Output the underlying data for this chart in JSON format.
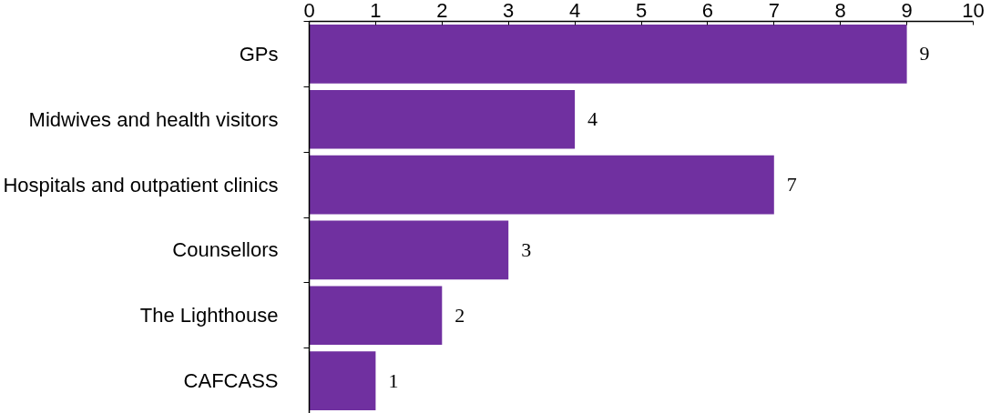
{
  "chart_data": {
    "type": "bar",
    "orientation": "horizontal",
    "categories": [
      "GPs",
      "Midwives and health visitors",
      "Hospitals and outpatient clinics",
      "Counsellors",
      "The Lighthouse",
      "CAFCASS"
    ],
    "values": [
      9,
      4,
      7,
      3,
      2,
      1
    ],
    "color": "#7030a0",
    "xlim": [
      0,
      10
    ],
    "xticks": [
      0,
      1,
      2,
      3,
      4,
      5,
      6,
      7,
      8,
      9,
      10
    ],
    "data_labels": true,
    "grid": false
  }
}
